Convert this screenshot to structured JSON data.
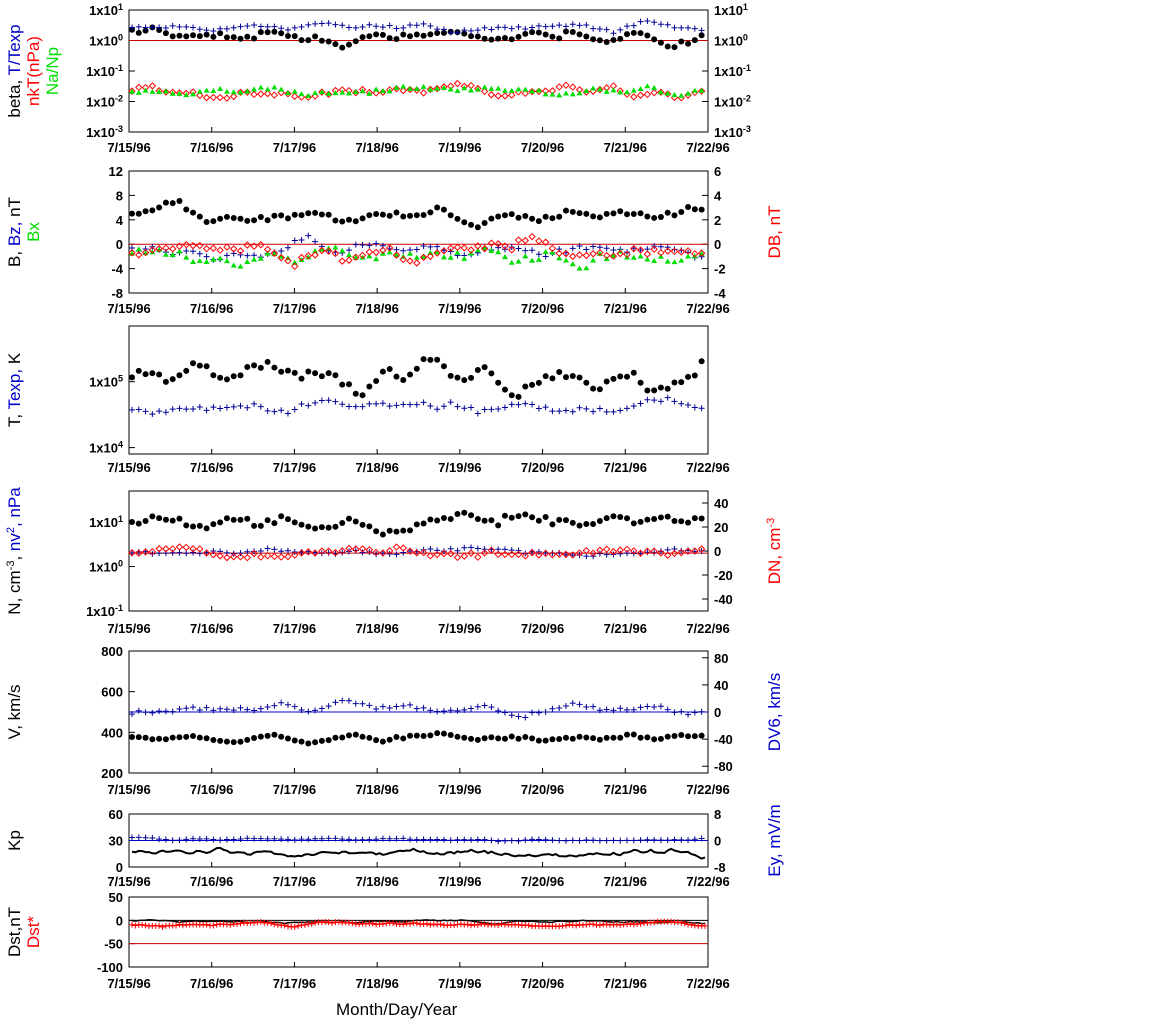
{
  "chart_data": [
    {
      "type": "scatter",
      "panel": "plasma-ratios",
      "yscale": "log",
      "ylim": [
        0.001,
        10
      ],
      "yticks_left": [
        "1x10-3",
        "1x10-2",
        "1x10-1",
        "1x100",
        "1x101"
      ],
      "yticks_right": [
        "1x10-3",
        "1x10-2",
        "1x10-1",
        "1x100",
        "1x101"
      ],
      "ylabel_left": [
        {
          "text": "beta,",
          "color": "#000000"
        },
        {
          "text": "T/Texp",
          "color": "#0000cc"
        }
      ],
      "ylabel_left2": [
        {
          "text": "nkT(nPa)",
          "color": "#ff0000"
        }
      ],
      "ylabel_left3": [
        {
          "text": "Na/Np",
          "color": "#00dd00"
        }
      ],
      "reference_lines": [
        {
          "y": 1,
          "color": "#cc0000"
        }
      ],
      "series": [
        {
          "key": "beta",
          "marker": "dot",
          "color": "#000000",
          "level": 1.3,
          "spread": 0.35
        },
        {
          "key": "T/Texp",
          "marker": "plus",
          "color": "#000099",
          "level": 2.6,
          "spread": 0.18
        },
        {
          "key": "nkT",
          "marker": "diamond",
          "color": "#ff0000",
          "level": 0.022,
          "spread": 0.25
        },
        {
          "key": "Na/Np",
          "marker": "triangle",
          "color": "#00dd00",
          "level": 0.02,
          "spread": 0.2
        }
      ]
    },
    {
      "type": "scatter",
      "panel": "magnetic-field",
      "ylim": [
        -8,
        12
      ],
      "yticks_left": [
        "-8",
        "-4",
        "0",
        "4",
        "8",
        "12"
      ],
      "ylim_right": [
        -4,
        6
      ],
      "yticks_right": [
        "-4",
        "-2",
        "0",
        "2",
        "4",
        "6"
      ],
      "ylabel_left": [
        {
          "text": "B,",
          "color": "#000000"
        },
        {
          "text": "Bz,",
          "color": "#0000cc"
        },
        {
          "text": "nT",
          "color": "#000000"
        }
      ],
      "ylabel_left2": [
        {
          "text": "Bx",
          "color": "#00dd00"
        }
      ],
      "ylabel_right": [
        {
          "text": "DB, nT",
          "color": "#ff0000"
        }
      ],
      "reference_lines": [
        {
          "y": 0,
          "color": "#cc0000"
        }
      ],
      "series": [
        {
          "key": "B",
          "marker": "dot",
          "color": "#000000",
          "level": 5,
          "spread": 1.6
        },
        {
          "key": "Bz",
          "marker": "plus",
          "color": "#000099",
          "level": -1,
          "spread": 1.6
        },
        {
          "key": "Bx",
          "marker": "triangle",
          "color": "#00dd00",
          "level": -2,
          "spread": 1.8
        },
        {
          "key": "DB",
          "marker": "diamond",
          "color": "#ff0000",
          "level": -1,
          "spread": 2.0
        }
      ]
    },
    {
      "type": "scatter",
      "panel": "temperature",
      "yscale": "log",
      "ylim": [
        8000,
        700000
      ],
      "yticks_left": [
        "1x104",
        "1x105"
      ],
      "ylabel_left": [
        {
          "text": "T,",
          "color": "#000000"
        },
        {
          "text": "Texp,",
          "color": "#0000cc"
        },
        {
          "text": "K",
          "color": "#000000"
        }
      ],
      "series": [
        {
          "key": "T",
          "marker": "dot",
          "color": "#000000",
          "level": 110000,
          "spread": 0.3
        },
        {
          "key": "Texp",
          "marker": "plus",
          "color": "#000099",
          "level": 42000,
          "spread": 0.12
        }
      ]
    },
    {
      "type": "scatter",
      "panel": "density",
      "yscale": "log",
      "ylim": [
        0.1,
        50
      ],
      "yticks_left": [
        "1x10-1",
        "1x100",
        "1x101"
      ],
      "ylim_right": [
        -50,
        50
      ],
      "yticks_right": [
        "-40",
        "-20",
        "0",
        "20",
        "40"
      ],
      "ylabel_left": [
        {
          "text": "N, cm-3,",
          "color": "#000000"
        },
        {
          "text": "nv2, nPa",
          "color": "#0000cc"
        }
      ],
      "ylabel_right": [
        {
          "text": "DN, cm-3",
          "color": "#ff0000"
        }
      ],
      "reference_lines": [
        {
          "y": 2,
          "color": "#cc0000"
        }
      ],
      "series": [
        {
          "key": "N",
          "marker": "dot",
          "color": "#000000",
          "level": 10,
          "spread": 0.25
        },
        {
          "key": "nv2",
          "marker": "plus",
          "color": "#000099",
          "level": 2.2,
          "spread": 0.12
        },
        {
          "key": "DN",
          "marker": "diamond",
          "color": "#ff0000",
          "level": 2.0,
          "spread": 0.15
        }
      ]
    },
    {
      "type": "scatter",
      "panel": "velocity",
      "ylim": [
        200,
        800
      ],
      "yticks_left": [
        "200",
        "400",
        "600",
        "800"
      ],
      "ylim_right": [
        -90,
        90
      ],
      "yticks_right": [
        "-80",
        "-40",
        "0",
        "40",
        "80"
      ],
      "ylabel_left": [
        {
          "text": "V, km/s",
          "color": "#000000"
        }
      ],
      "ylabel_right": [
        {
          "text": "DV6, km/s",
          "color": "#0000cc"
        }
      ],
      "reference_lines": [
        {
          "y": 500,
          "color": "#0000cc"
        }
      ],
      "series": [
        {
          "key": "V",
          "marker": "dot",
          "color": "#000000",
          "level": 370,
          "spread": 25
        },
        {
          "key": "DV6",
          "marker": "plus",
          "color": "#000099",
          "level": 510,
          "spread": 35
        }
      ]
    },
    {
      "type": "line",
      "panel": "kp-ey",
      "ylim": [
        0,
        60
      ],
      "yticks_left": [
        "0",
        "30",
        "60"
      ],
      "ylim_right": [
        -8,
        8
      ],
      "yticks_right": [
        "-8",
        "0",
        "8"
      ],
      "ylabel_left": [
        {
          "text": "Kp",
          "color": "#000000"
        }
      ],
      "ylabel_right": [
        {
          "text": "Ey,  mV/m",
          "color": "#0000cc"
        }
      ],
      "reference_lines": [
        {
          "y": 30,
          "color": "#0000cc"
        }
      ],
      "series": [
        {
          "key": "Kp",
          "marker": "step",
          "color": "#000000",
          "level": 15,
          "spread": 6
        },
        {
          "key": "Ey",
          "marker": "plus",
          "color": "#000099",
          "level": 31,
          "spread": 2
        }
      ]
    },
    {
      "type": "line",
      "panel": "dst",
      "ylim": [
        -100,
        50
      ],
      "yticks_left": [
        "-100",
        "-50",
        "0",
        "50"
      ],
      "ylabel_left": [
        {
          "text": "Dst,nT",
          "color": "#000000"
        }
      ],
      "ylabel_left2": [
        {
          "text": "Dst*",
          "color": "#ff0000"
        }
      ],
      "reference_lines": [
        {
          "y": 0,
          "color": "#000000"
        },
        {
          "y": -50,
          "color": "#cc0000"
        }
      ],
      "series": [
        {
          "key": "Dst",
          "marker": "line",
          "color": "#000000",
          "level": -3,
          "spread": 5
        },
        {
          "key": "Dst*",
          "marker": "plusline",
          "color": "#ff0000",
          "level": -8,
          "spread": 6
        }
      ]
    }
  ],
  "x_ticks": [
    "7/15/96",
    "7/16/96",
    "7/17/96",
    "7/18/96",
    "7/19/96",
    "7/20/96",
    "7/21/96",
    "7/22/96"
  ],
  "xlabel": "Month/Day/Year"
}
